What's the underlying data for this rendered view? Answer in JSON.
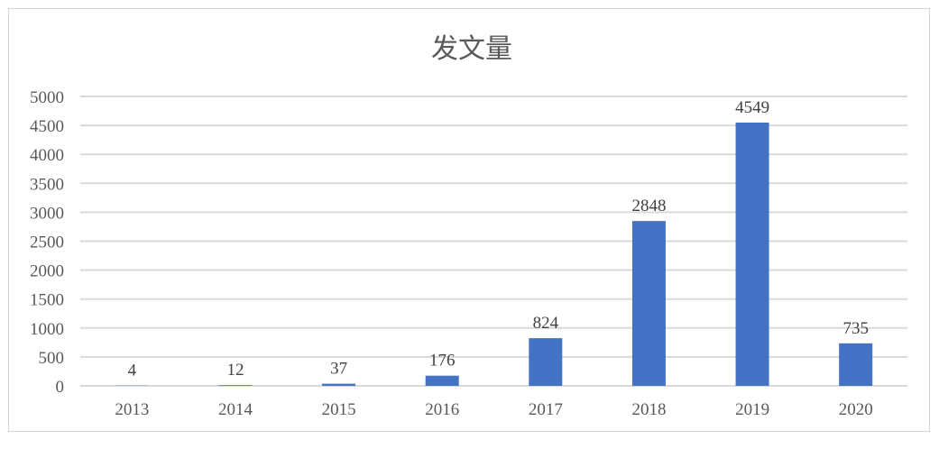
{
  "chart_data": {
    "type": "bar",
    "title": "发文量",
    "categories": [
      "2013",
      "2014",
      "2015",
      "2016",
      "2017",
      "2018",
      "2019",
      "2020"
    ],
    "values": [
      4,
      12,
      37,
      176,
      824,
      2848,
      4549,
      735
    ],
    "data_labels": [
      "4",
      "12",
      "37",
      "176",
      "824",
      "2848",
      "4549",
      "735"
    ],
    "y_ticks": [
      "0",
      "500",
      "1000",
      "1500",
      "2000",
      "2500",
      "3000",
      "3500",
      "4000",
      "4500",
      "5000"
    ],
    "ylim": [
      0,
      5000
    ],
    "xlabel": "",
    "ylabel": "",
    "grid": true,
    "legend": "none",
    "bar_color": "#4472c4",
    "grid_color": "#d9d9d9",
    "text_color": "#595959"
  }
}
